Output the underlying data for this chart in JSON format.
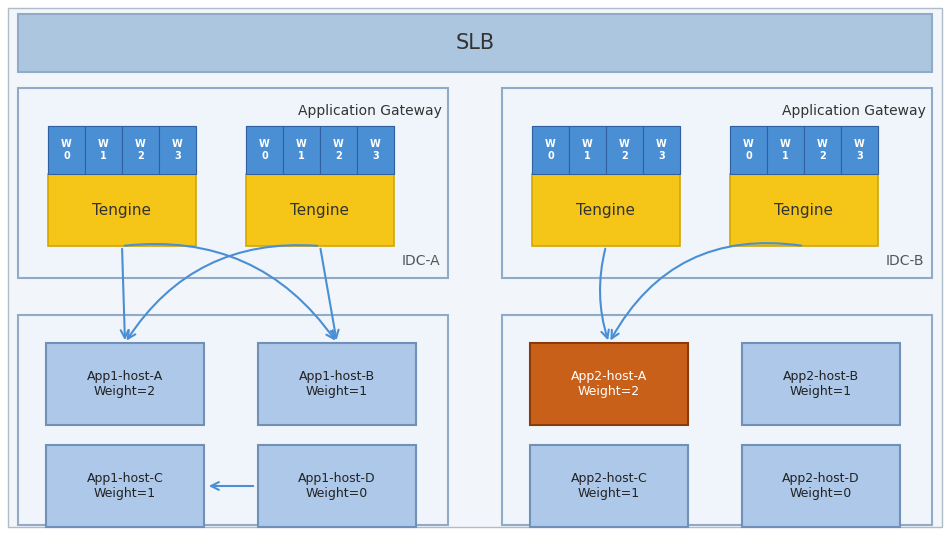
{
  "bg_color": "#ffffff",
  "outer_bg": "#f0f4f8",
  "slb_color": "#adc6e0",
  "slb_text": "SLB",
  "slb_border": "#90aac8",
  "idc_border_color": "#90aac8",
  "idc_bg_color": "#f0f5fb",
  "gateway_text": "Application Gateway",
  "tengine_color": "#f5c518",
  "tengine_border": "#d4a800",
  "tengine_text": "Tengine",
  "worker_color": "#4a8fd4",
  "worker_bg_color": "#c8ddf0",
  "worker_labels": [
    "W\n0",
    "W\n1",
    "W\n2",
    "W\n3"
  ],
  "arrow_color": "#4a8fd4",
  "idc_a_label": "IDC-A",
  "idc_b_label": "IDC-B",
  "host_color": "#adc8e8",
  "host_border": "#7090b8",
  "host_color_orange": "#c8601a",
  "host_border_orange": "#8b3a0a",
  "app1_labels": [
    "App1-host-A\nWeight=2",
    "App1-host-B\nWeight=1",
    "App1-host-C\nWeight=1",
    "App1-host-D\nWeight=0"
  ],
  "app2_labels": [
    "App2-host-A\nWeight=2",
    "App2-host-B\nWeight=1",
    "App2-host-C\nWeight=1",
    "App2-host-D\nWeight=0"
  ]
}
